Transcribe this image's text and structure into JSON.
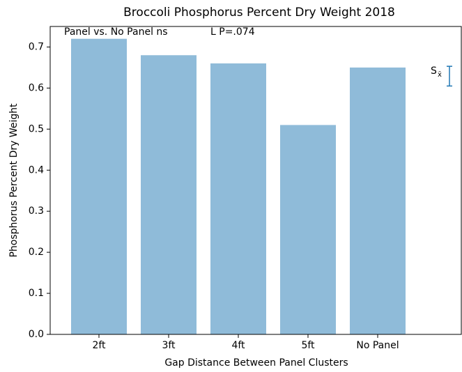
{
  "chart_data": {
    "type": "bar",
    "title": "Broccoli Phosphorus Percent Dry Weight 2018",
    "xlabel": "Gap Distance Between Panel Clusters",
    "ylabel": "Phosphorus Percent Dry Weight",
    "annotations": [
      "Panel vs. No Panel ns",
      "L P=.074"
    ],
    "categories": [
      "2ft",
      "3ft",
      "4ft",
      "5ft",
      "No Panel"
    ],
    "values": [
      0.72,
      0.68,
      0.66,
      0.51,
      0.65
    ],
    "color": "#8fbbd9",
    "ylim": [
      0,
      0.75
    ],
    "yticks": [
      {
        "value": 0,
        "label": "0.0"
      },
      0.1,
      0.2,
      0.3,
      0.4,
      0.5,
      0.6,
      0.7
    ],
    "error_bar": {
      "label": "S",
      "subscript": "x̄",
      "value": 0.629,
      "error": 0.024,
      "color": "#1f77b4"
    }
  }
}
